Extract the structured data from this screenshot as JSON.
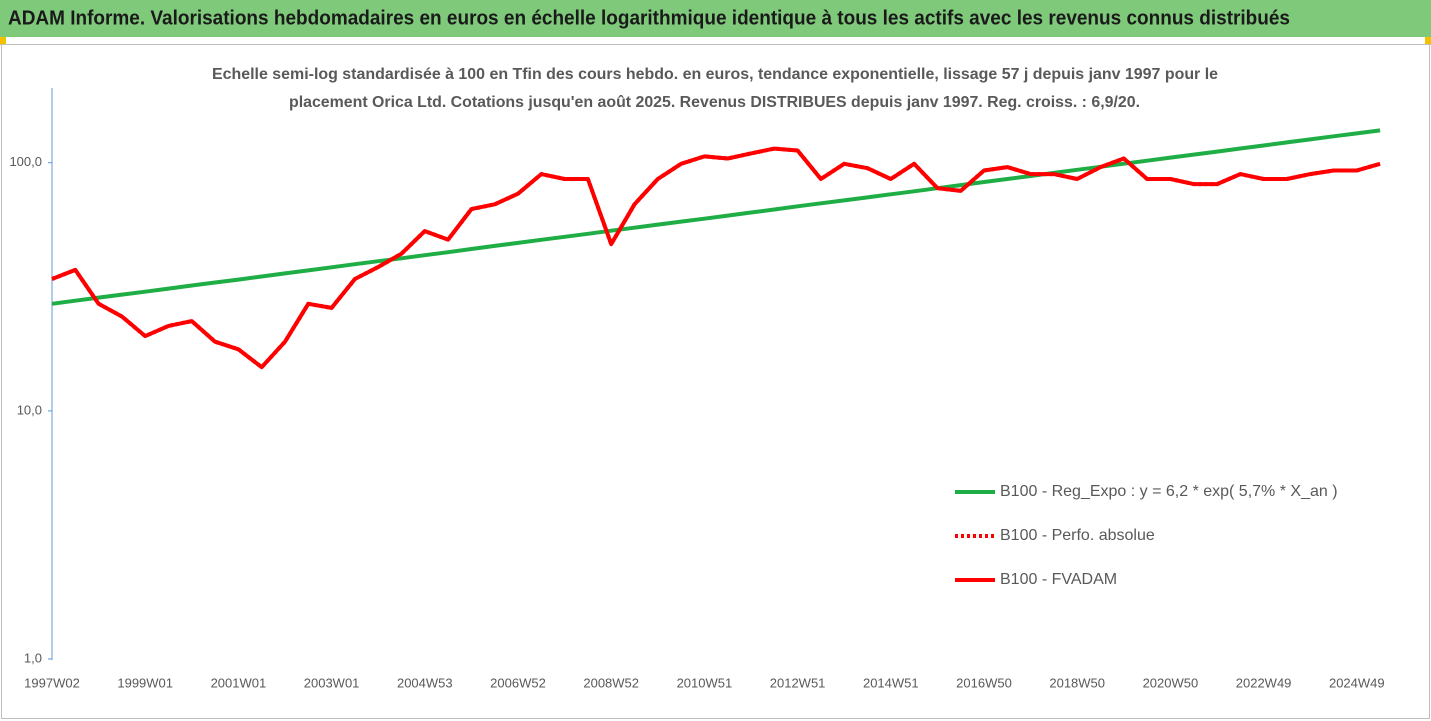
{
  "chart_data": {
    "type": "line",
    "title": "ADAM Informe. Valorisations hebdomadaires en euros en échelle logarithmique identique à tous les actifs avec les revenus connus distribués",
    "subtitle": [
      "Echelle semi-log standardisée à 100 en Tfin des cours hebdo. en euros, tendance exponentielle, lissage 57 j depuis janv 1997 pour le",
      "placement Orica Ltd. Cotations jusqu'en août 2025. Revenus DISTRIBUES depuis janv 1997. Reg. croiss. : 6,9/20."
    ],
    "categories": [
      "1997W02",
      null,
      null,
      null,
      "1999W01",
      null,
      null,
      null,
      "2001W01",
      null,
      null,
      null,
      "2003W01",
      null,
      null,
      null,
      "2004W53",
      null,
      null,
      null,
      "2006W52",
      null,
      null,
      null,
      "2008W52",
      null,
      null,
      null,
      "2010W51",
      null,
      null,
      null,
      "2012W51",
      null,
      null,
      null,
      "2014W51",
      null,
      null,
      null,
      "2016W50",
      null,
      null,
      null,
      "2018W50",
      null,
      null,
      null,
      "2020W50",
      null,
      null,
      null,
      "2022W49",
      null,
      null,
      null,
      "2024W49",
      null
    ],
    "series": [
      {
        "name": "B100 - Reg_Expo : y = 6,2 * exp( 5,7% *  X_an )",
        "color": "#1fae45",
        "dash": "solid",
        "values": [
          27.0,
          27.8,
          28.6,
          29.4,
          30.2,
          31.1,
          32.0,
          32.9,
          33.8,
          34.8,
          35.8,
          36.8,
          37.9,
          39.0,
          40.1,
          41.2,
          42.4,
          43.6,
          44.9,
          46.2,
          47.5,
          48.9,
          50.3,
          51.7,
          53.2,
          54.7,
          56.3,
          57.9,
          59.5,
          61.2,
          63.0,
          64.8,
          66.7,
          68.6,
          70.5,
          72.5,
          74.6,
          76.7,
          78.9,
          81.2,
          83.6,
          86.0,
          88.4,
          91.0,
          93.6,
          96.3,
          99.1,
          101.9,
          104.8,
          107.8,
          110.9,
          114.1,
          117.3,
          120.7,
          124.1,
          127.7,
          131.3,
          135.0
        ]
      },
      {
        "name": "B100 - Perfo. absolue",
        "color": "#ff0000",
        "dash": "dotted",
        "values": [
          34,
          37,
          27,
          24,
          20,
          22,
          23,
          19,
          17.7,
          15,
          19,
          27,
          26,
          34,
          38,
          43,
          53,
          49,
          65,
          68,
          75,
          90,
          86,
          86,
          47,
          68,
          86,
          99,
          106,
          104,
          109,
          114,
          112,
          86,
          99,
          95,
          86,
          99,
          79,
          77,
          93,
          96,
          90,
          90,
          86,
          96,
          104,
          86,
          86,
          82,
          82,
          90,
          86,
          86,
          90,
          93,
          93,
          99
        ]
      },
      {
        "name": "B100 - FVADAM",
        "color": "#ff0000",
        "dash": "solid",
        "values": [
          34,
          37,
          27,
          24,
          20,
          22,
          23,
          19,
          17.7,
          15,
          19,
          27,
          26,
          34,
          38,
          43,
          53,
          49,
          65,
          68,
          75,
          90,
          86,
          86,
          47,
          68,
          86,
          99,
          106,
          104,
          109,
          114,
          112,
          86,
          99,
          95,
          86,
          99,
          79,
          77,
          93,
          96,
          90,
          90,
          86,
          96,
          104,
          86,
          86,
          82,
          82,
          90,
          86,
          86,
          90,
          93,
          93,
          99
        ]
      }
    ],
    "ylim": [
      1,
      200
    ],
    "yticks": [
      {
        "value": 1,
        "label": "1,0"
      },
      {
        "value": 10,
        "label": "10,0"
      },
      {
        "value": 100,
        "label": "100,0"
      }
    ],
    "log_y": true,
    "grid": false,
    "legend": "right"
  }
}
